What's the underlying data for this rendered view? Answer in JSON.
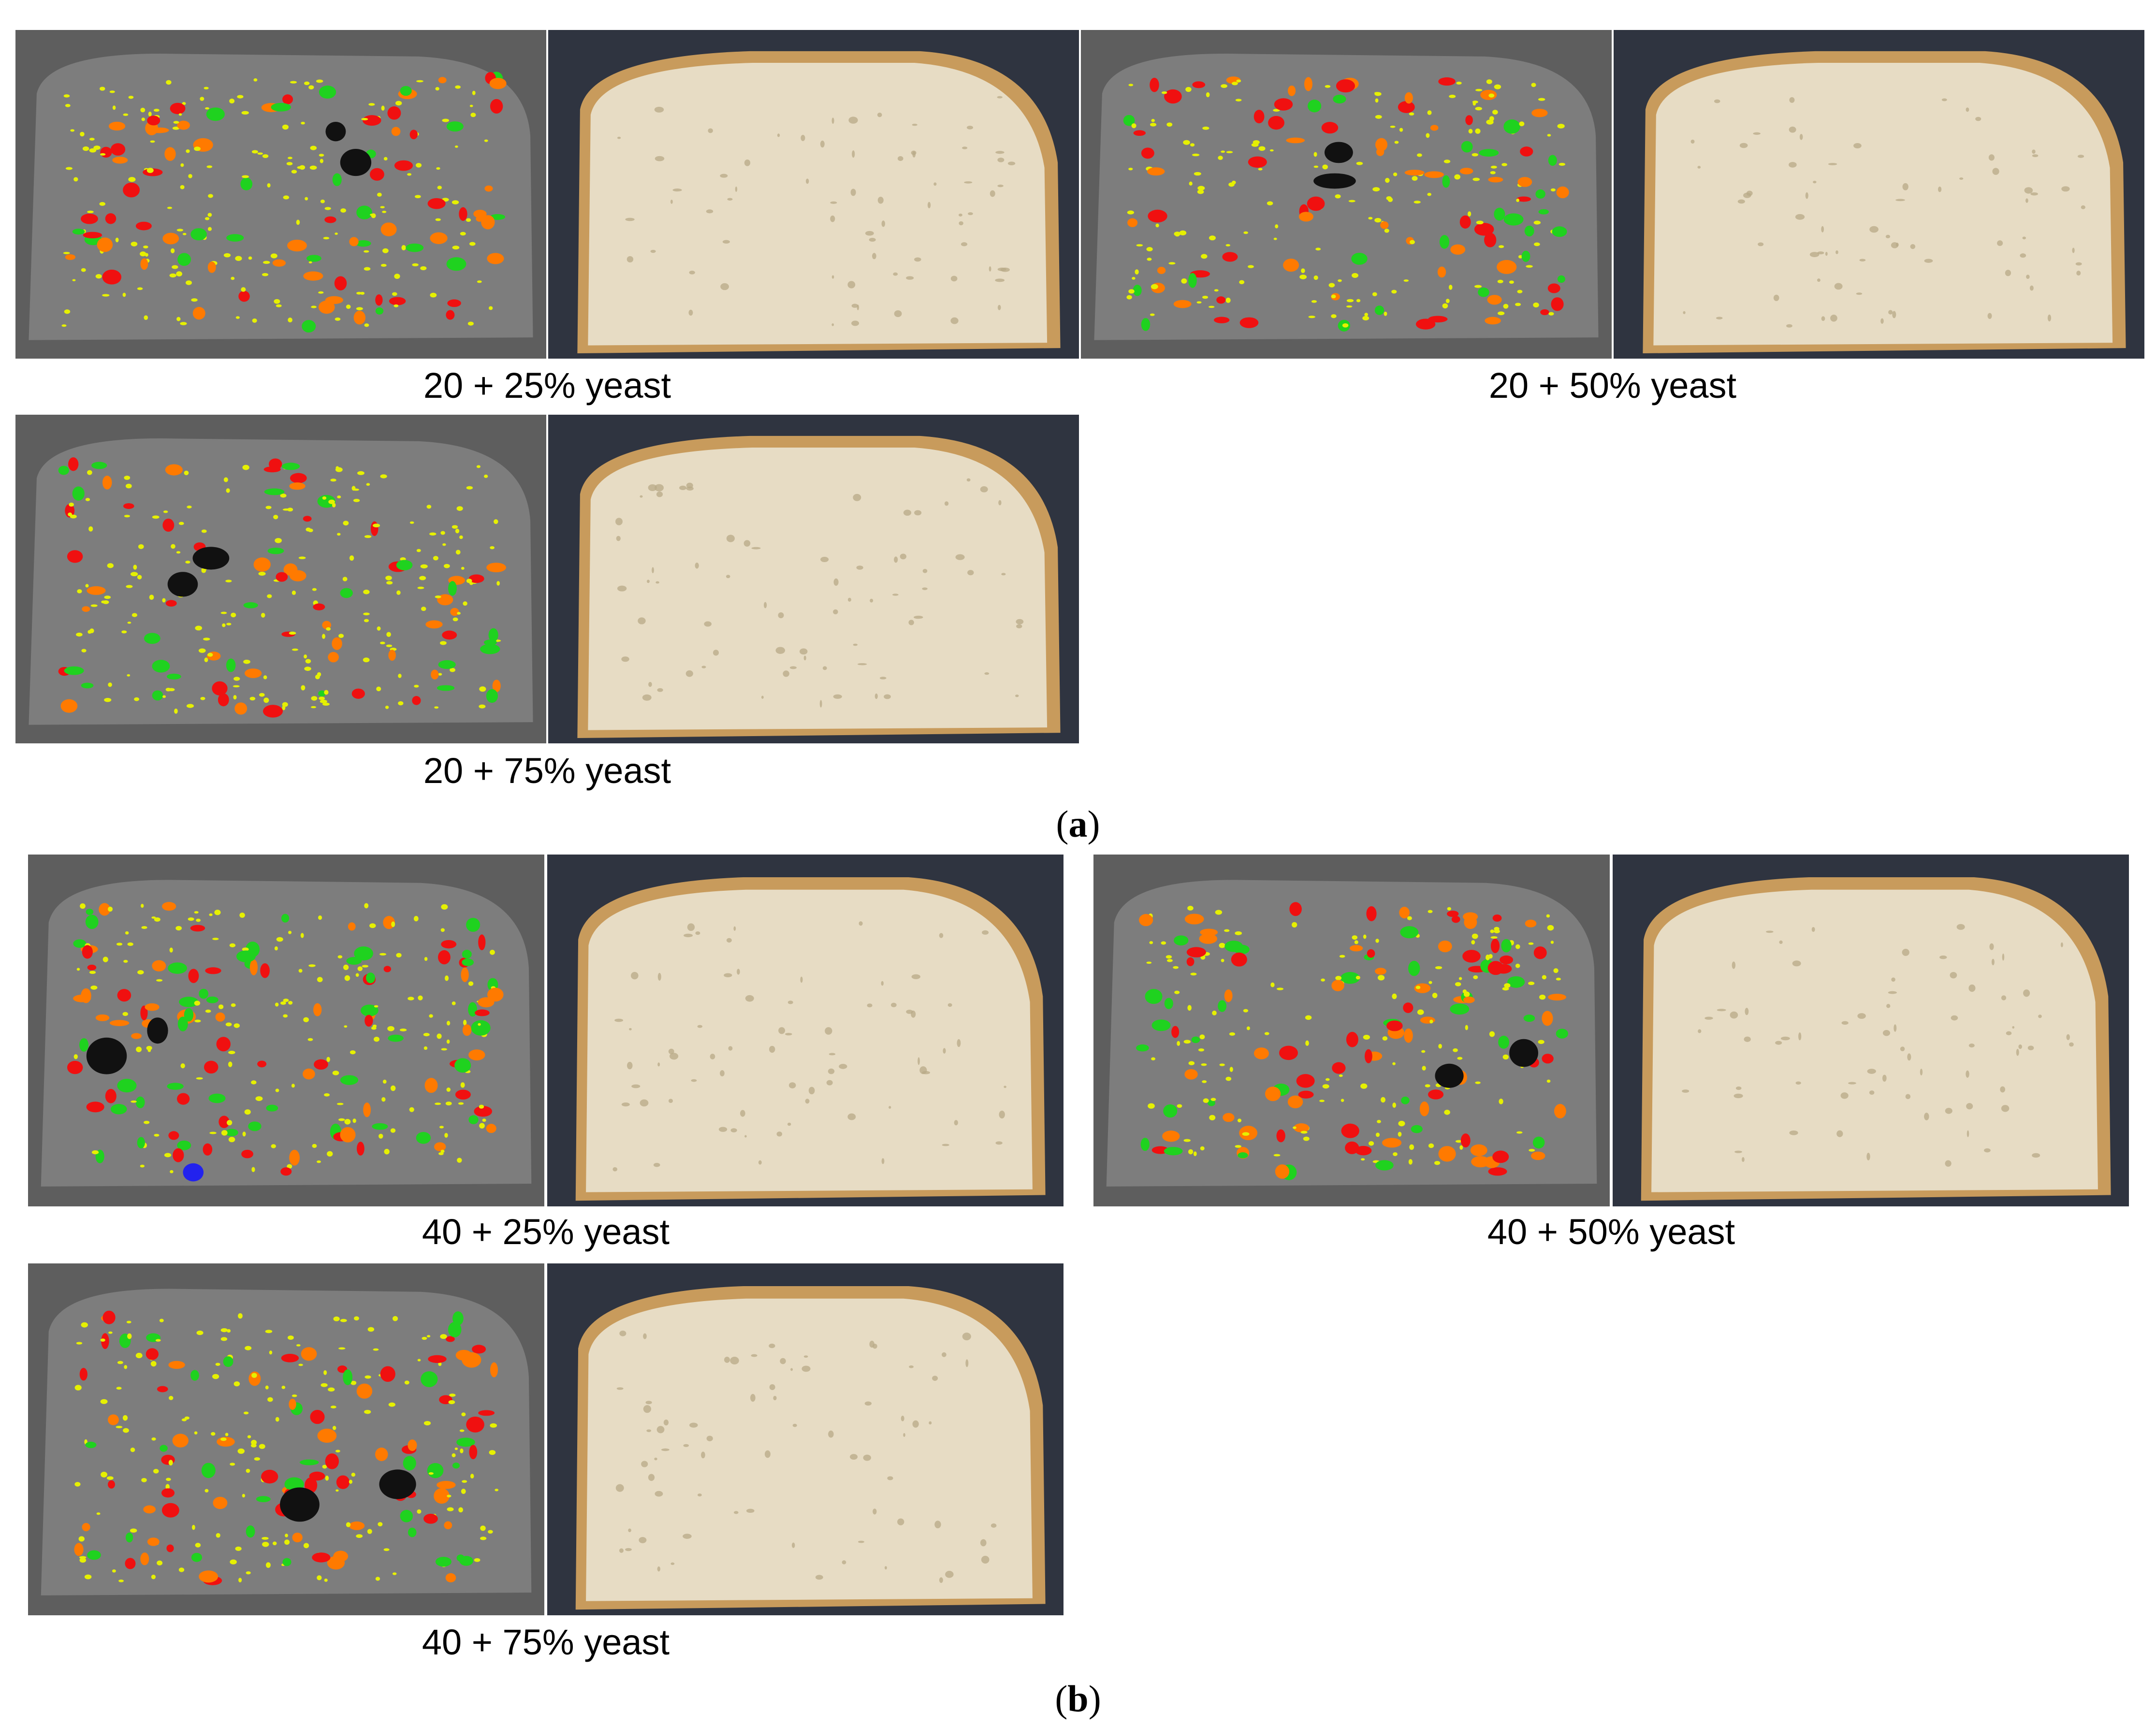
{
  "figure": {
    "part_a_label": "a",
    "part_b_label": "b",
    "panels": [
      {
        "caption": "20 + 25% yeast"
      },
      {
        "caption": "20 + 50% yeast"
      },
      {
        "caption": "20 + 75% yeast"
      },
      {
        "caption": "40 + 25% yeast"
      },
      {
        "caption": "40 + 50% yeast"
      },
      {
        "caption": "40 + 75% yeast"
      }
    ]
  },
  "colors": {
    "segmentation_background": "#5e5e5e",
    "segmentation_slice": "#7d7d7d",
    "pore_small": "#e6f000",
    "pore_medium": "#1fd21f",
    "pore_orange": "#ff7a00",
    "pore_large": "#f01010",
    "pore_largest": "#111111",
    "pore_blue": "#2222ee",
    "photo_background": "#2f3440",
    "bread_crumb": "#e7dcc4",
    "bread_crust": "#c89b5c"
  }
}
